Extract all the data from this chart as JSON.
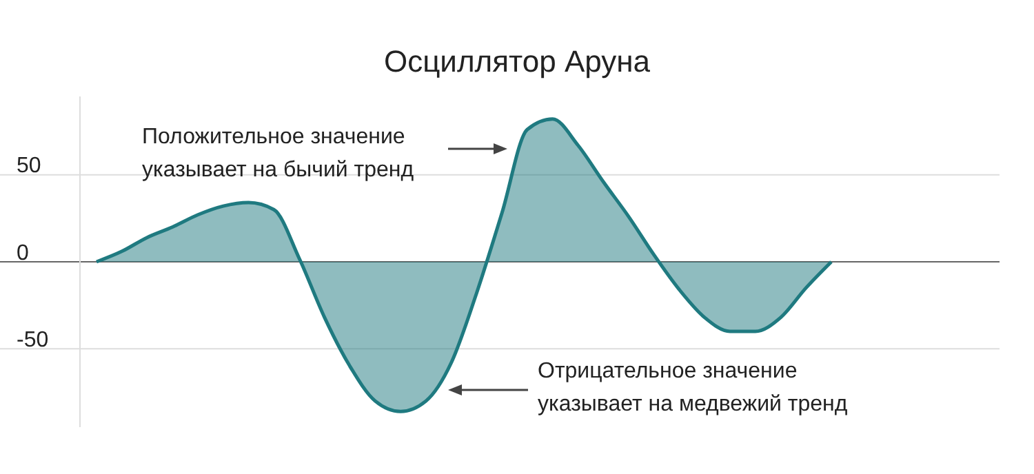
{
  "chart_data": {
    "type": "area",
    "title": "Осциллятор Аруна",
    "categories": [
      null,
      null,
      null,
      null,
      null,
      null,
      null,
      null,
      null,
      null,
      null,
      null,
      null,
      null,
      null,
      null,
      null,
      null,
      null,
      null,
      null,
      null,
      null,
      null,
      null,
      null,
      null,
      null,
      null,
      null
    ],
    "series": [
      {
        "color": "#1f7a80",
        "values": [
          0,
          6,
          14,
          20,
          27,
          32,
          34,
          30,
          2,
          -32,
          -60,
          -80,
          -86,
          -80,
          -58,
          -18,
          28,
          76,
          82,
          67,
          46,
          26,
          4,
          -16,
          -32,
          -40,
          -40,
          -32,
          -15,
          0
        ]
      }
    ],
    "ylim": [
      -95,
      95
    ],
    "yticks": [
      -50,
      0,
      50
    ],
    "grid": "y",
    "annotations": [
      "Положительное значение\nуказывает на бычий тренд",
      "Отрицательное значение\nуказывает на медвежий тренд"
    ]
  }
}
